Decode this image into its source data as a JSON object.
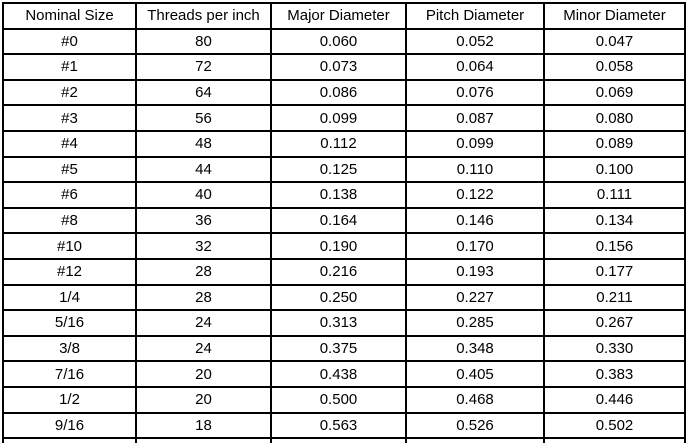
{
  "page": {
    "background_color": "#ffffff",
    "border_color": "#000000",
    "text_color": "#000000"
  },
  "table": {
    "columns": [
      "Nominal Size",
      "Threads per inch",
      "Major Diameter",
      "Pitch Diameter",
      "Minor Diameter"
    ],
    "rows": [
      [
        "#0",
        "80",
        "0.060",
        "0.052",
        "0.047"
      ],
      [
        "#1",
        "72",
        "0.073",
        "0.064",
        "0.058"
      ],
      [
        "#2",
        "64",
        "0.086",
        "0.076",
        "0.069"
      ],
      [
        "#3",
        "56",
        "0.099",
        "0.087",
        "0.080"
      ],
      [
        "#4",
        "48",
        "0.112",
        "0.099",
        "0.089"
      ],
      [
        "#5",
        "44",
        "0.125",
        "0.110",
        "0.100"
      ],
      [
        "#6",
        "40",
        "0.138",
        "0.122",
        "0.111"
      ],
      [
        "#8",
        "36",
        "0.164",
        "0.146",
        "0.134"
      ],
      [
        "#10",
        "32",
        "0.190",
        "0.170",
        "0.156"
      ],
      [
        "#12",
        "28",
        "0.216",
        "0.193",
        "0.177"
      ],
      [
        "1/4",
        "28",
        "0.250",
        "0.227",
        "0.211"
      ],
      [
        "5/16",
        "24",
        "0.313",
        "0.285",
        "0.267"
      ],
      [
        "3/8",
        "24",
        "0.375",
        "0.348",
        "0.330"
      ],
      [
        "7/16",
        "20",
        "0.438",
        "0.405",
        "0.383"
      ],
      [
        "1/2",
        "20",
        "0.500",
        "0.468",
        "0.446"
      ],
      [
        "9/16",
        "18",
        "0.563",
        "0.526",
        "0.502"
      ]
    ]
  }
}
